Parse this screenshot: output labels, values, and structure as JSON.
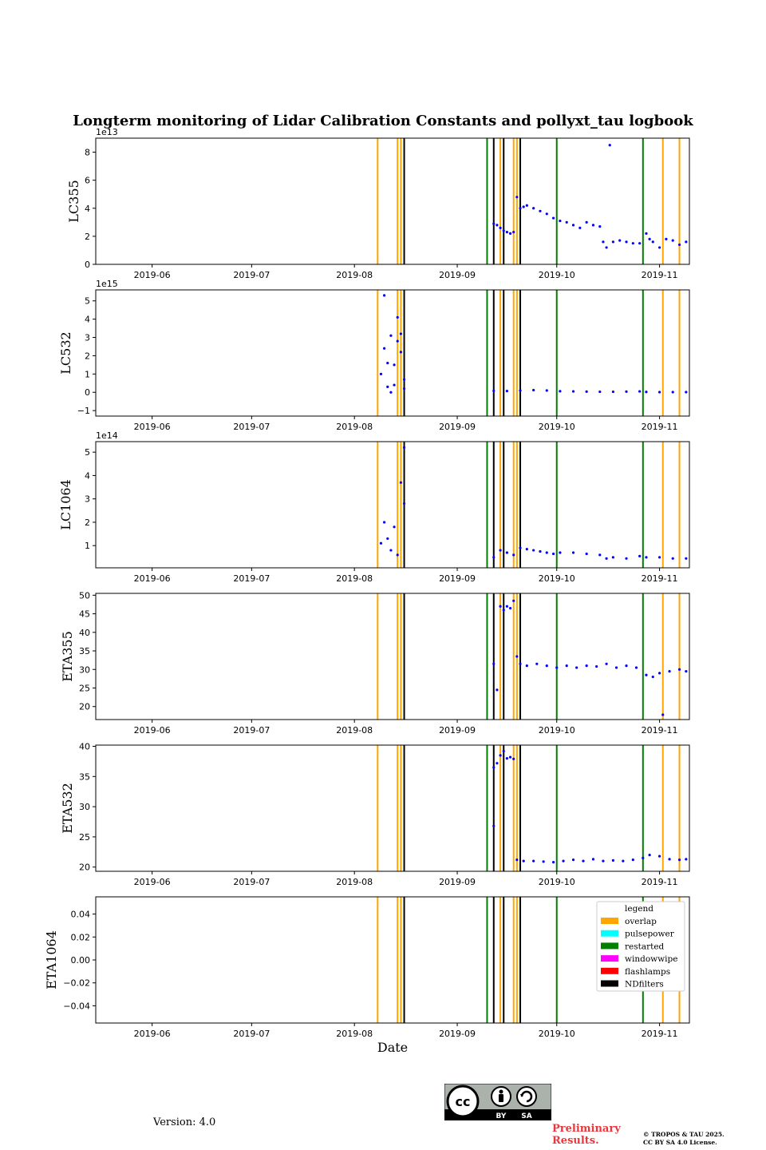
{
  "figure": {
    "title": "Longterm monitoring of Lidar Calibration Constants and pollyxt_tau logbook",
    "xlabel": "Date",
    "version": "Version: 4.0",
    "preliminary": "Preliminary Results.",
    "copyright_line1": "© TROPOS & TAU 2025.",
    "copyright_line2": "CC BY SA 4.0 License.",
    "license_badge": {
      "icon": "cc-by-sa-icon",
      "labels": [
        "BY",
        "SA"
      ]
    }
  },
  "chart_data": [
    {
      "type": "scatter",
      "ylabel": "LC355",
      "offset_text": "1e13",
      "xlim": [
        "2019-05-15",
        "2019-11-10"
      ],
      "ylim": [
        0,
        9
      ],
      "yticks": [
        0,
        2,
        4,
        6,
        8
      ],
      "ytick_labels": [
        "0",
        "2",
        "4",
        "6",
        "8"
      ],
      "series": [
        {
          "color": "#0000ff",
          "x": [
            "2019-09-12",
            "2019-09-13",
            "2019-09-14",
            "2019-09-15",
            "2019-09-16",
            "2019-09-17",
            "2019-09-18",
            "2019-09-19",
            "2019-09-20",
            "2019-09-21",
            "2019-09-22",
            "2019-09-24",
            "2019-09-26",
            "2019-09-28",
            "2019-09-30",
            "2019-10-02",
            "2019-10-04",
            "2019-10-06",
            "2019-10-08",
            "2019-10-10",
            "2019-10-12",
            "2019-10-14",
            "2019-10-15",
            "2019-10-16",
            "2019-10-17",
            "2019-10-18",
            "2019-10-20",
            "2019-10-22",
            "2019-10-24",
            "2019-10-26",
            "2019-10-28",
            "2019-10-29",
            "2019-10-30",
            "2019-11-01",
            "2019-11-03",
            "2019-11-05",
            "2019-11-07",
            "2019-11-09"
          ],
          "y": [
            2.9,
            2.8,
            2.6,
            2.4,
            2.3,
            2.2,
            2.3,
            4.8,
            4.0,
            4.1,
            4.2,
            4.0,
            3.8,
            3.6,
            3.3,
            3.1,
            3.0,
            2.8,
            2.6,
            3.0,
            2.8,
            2.7,
            1.6,
            1.2,
            8.5,
            1.6,
            1.7,
            1.6,
            1.5,
            1.5,
            2.2,
            1.8,
            1.6,
            1.2,
            1.8,
            1.7,
            1.4,
            1.6
          ]
        }
      ]
    },
    {
      "type": "scatter",
      "ylabel": "LC532",
      "offset_text": "1e15",
      "xlim": [
        "2019-05-15",
        "2019-11-10"
      ],
      "ylim": [
        -1.3,
        5.6
      ],
      "yticks": [
        -1,
        0,
        1,
        2,
        3,
        4,
        5
      ],
      "ytick_labels": [
        "−1",
        "0",
        "1",
        "2",
        "3",
        "4",
        "5"
      ],
      "series": [
        {
          "color": "#0000ff",
          "x": [
            "2019-08-09",
            "2019-08-10",
            "2019-08-10",
            "2019-08-11",
            "2019-08-11",
            "2019-08-12",
            "2019-08-12",
            "2019-08-13",
            "2019-08-13",
            "2019-08-14",
            "2019-08-14",
            "2019-08-15",
            "2019-08-15",
            "2019-08-16",
            "2019-08-16",
            "2019-09-12",
            "2019-09-16",
            "2019-09-20",
            "2019-09-24",
            "2019-09-28",
            "2019-10-02",
            "2019-10-06",
            "2019-10-10",
            "2019-10-14",
            "2019-10-18",
            "2019-10-22",
            "2019-10-26",
            "2019-10-28",
            "2019-11-01",
            "2019-11-05",
            "2019-11-09"
          ],
          "y": [
            1.0,
            5.3,
            2.4,
            1.6,
            0.3,
            3.1,
            0.0,
            1.5,
            0.4,
            2.8,
            4.1,
            3.2,
            2.2,
            0.7,
            0.2,
            0.08,
            0.07,
            0.1,
            0.12,
            0.1,
            0.06,
            0.05,
            0.04,
            0.03,
            0.03,
            0.04,
            0.05,
            0.02,
            0.01,
            0.01,
            0.01
          ]
        }
      ]
    },
    {
      "type": "scatter",
      "ylabel": "LC1064",
      "offset_text": "1e14",
      "xlim": [
        "2019-05-15",
        "2019-11-10"
      ],
      "ylim": [
        0.05,
        5.45
      ],
      "yticks": [
        1,
        2,
        3,
        4,
        5
      ],
      "ytick_labels": [
        "1",
        "2",
        "3",
        "4",
        "5"
      ],
      "series": [
        {
          "color": "#0000ff",
          "x": [
            "2019-08-09",
            "2019-08-10",
            "2019-08-11",
            "2019-08-12",
            "2019-08-13",
            "2019-08-14",
            "2019-08-15",
            "2019-08-16",
            "2019-08-16",
            "2019-09-12",
            "2019-09-14",
            "2019-09-16",
            "2019-09-18",
            "2019-09-20",
            "2019-09-22",
            "2019-09-24",
            "2019-09-26",
            "2019-09-28",
            "2019-09-30",
            "2019-10-02",
            "2019-10-06",
            "2019-10-10",
            "2019-10-14",
            "2019-10-16",
            "2019-10-18",
            "2019-10-22",
            "2019-10-26",
            "2019-10-28",
            "2019-11-01",
            "2019-11-05",
            "2019-11-09"
          ],
          "y": [
            1.1,
            2.0,
            1.3,
            0.8,
            1.8,
            0.6,
            3.7,
            2.8,
            5.2,
            0.5,
            0.8,
            0.7,
            0.6,
            0.9,
            0.85,
            0.8,
            0.75,
            0.7,
            0.65,
            0.7,
            0.7,
            0.65,
            0.6,
            0.45,
            0.5,
            0.45,
            0.55,
            0.5,
            0.5,
            0.45,
            0.45
          ]
        }
      ]
    },
    {
      "type": "scatter",
      "ylabel": "ETA355",
      "offset_text": "",
      "xlim": [
        "2019-05-15",
        "2019-11-10"
      ],
      "ylim": [
        16.5,
        50.5
      ],
      "yticks": [
        20,
        25,
        30,
        35,
        40,
        45,
        50
      ],
      "ytick_labels": [
        "20",
        "25",
        "30",
        "35",
        "40",
        "45",
        "50"
      ],
      "series": [
        {
          "color": "#0000ff",
          "x": [
            "2019-09-12",
            "2019-09-13",
            "2019-09-14",
            "2019-09-15",
            "2019-09-16",
            "2019-09-17",
            "2019-09-18",
            "2019-09-19",
            "2019-09-20",
            "2019-09-22",
            "2019-09-25",
            "2019-09-28",
            "2019-10-01",
            "2019-10-04",
            "2019-10-07",
            "2019-10-10",
            "2019-10-13",
            "2019-10-16",
            "2019-10-19",
            "2019-10-22",
            "2019-10-25",
            "2019-10-28",
            "2019-10-30",
            "2019-11-01",
            "2019-11-02",
            "2019-11-04",
            "2019-11-07",
            "2019-11-09"
          ],
          "y": [
            31.5,
            24.5,
            47.0,
            46.0,
            47.0,
            46.5,
            48.5,
            33.5,
            31.5,
            31.0,
            31.5,
            31.0,
            30.5,
            31.0,
            30.5,
            31.0,
            30.8,
            31.5,
            30.5,
            31.0,
            30.5,
            28.5,
            28.0,
            29.0,
            17.8,
            29.5,
            30.0,
            29.5
          ]
        }
      ]
    },
    {
      "type": "scatter",
      "ylabel": "ETA532",
      "offset_text": "",
      "xlim": [
        "2019-05-15",
        "2019-11-10"
      ],
      "ylim": [
        19.3,
        40.2
      ],
      "yticks": [
        20,
        25,
        30,
        35,
        40
      ],
      "ytick_labels": [
        "20",
        "25",
        "30",
        "35",
        "40"
      ],
      "series": [
        {
          "color": "#0000ff",
          "x": [
            "2019-09-12",
            "2019-09-12",
            "2019-09-13",
            "2019-09-14",
            "2019-09-15",
            "2019-09-16",
            "2019-09-17",
            "2019-09-18",
            "2019-09-19",
            "2019-09-21",
            "2019-09-24",
            "2019-09-27",
            "2019-09-30",
            "2019-10-03",
            "2019-10-06",
            "2019-10-09",
            "2019-10-12",
            "2019-10-15",
            "2019-10-18",
            "2019-10-21",
            "2019-10-24",
            "2019-10-27",
            "2019-10-29",
            "2019-11-01",
            "2019-11-04",
            "2019-11-07",
            "2019-11-09"
          ],
          "y": [
            26.8,
            36.5,
            37.2,
            38.5,
            39.2,
            38.0,
            38.2,
            37.9,
            21.2,
            21.0,
            21.0,
            20.9,
            20.8,
            21.0,
            21.2,
            21.0,
            21.3,
            21.0,
            21.1,
            21.0,
            21.2,
            21.5,
            22.0,
            21.8,
            21.3,
            21.2,
            21.3
          ]
        }
      ]
    },
    {
      "type": "scatter",
      "ylabel": "ETA1064",
      "offset_text": "",
      "xlim": [
        "2019-05-15",
        "2019-11-10"
      ],
      "ylim": [
        -0.055,
        0.055
      ],
      "yticks": [
        -0.04,
        -0.02,
        0.0,
        0.02,
        0.04
      ],
      "ytick_labels": [
        "−0.04",
        "−0.02",
        "0.00",
        "0.02",
        "0.04"
      ],
      "series": []
    }
  ],
  "x_ticks": [
    {
      "date": "2019-06-01",
      "label": "2019-06"
    },
    {
      "date": "2019-07-01",
      "label": "2019-07"
    },
    {
      "date": "2019-08-01",
      "label": "2019-08"
    },
    {
      "date": "2019-09-01",
      "label": "2019-09"
    },
    {
      "date": "2019-10-01",
      "label": "2019-10"
    },
    {
      "date": "2019-11-01",
      "label": "2019-11"
    }
  ],
  "events": [
    {
      "date": "2019-08-08",
      "type": "overlap"
    },
    {
      "date": "2019-08-14",
      "type": "overlap"
    },
    {
      "date": "2019-08-15",
      "type": "overlap"
    },
    {
      "date": "2019-08-16",
      "type": "NDfilters"
    },
    {
      "date": "2019-09-10",
      "type": "restarted"
    },
    {
      "date": "2019-09-12",
      "type": "NDfilters"
    },
    {
      "date": "2019-09-14",
      "type": "overlap"
    },
    {
      "date": "2019-09-15",
      "type": "NDfilters"
    },
    {
      "date": "2019-09-18",
      "type": "overlap"
    },
    {
      "date": "2019-09-19",
      "type": "overlap"
    },
    {
      "date": "2019-09-20",
      "type": "NDfilters"
    },
    {
      "date": "2019-10-01",
      "type": "restarted"
    },
    {
      "date": "2019-10-27",
      "type": "restarted"
    },
    {
      "date": "2019-11-02",
      "type": "overlap"
    },
    {
      "date": "2019-11-07",
      "type": "overlap"
    }
  ],
  "legend": {
    "title": "legend",
    "placement": "upper-right of last panel",
    "entries": [
      {
        "label": "overlap",
        "color": "#ffa500"
      },
      {
        "label": "pulsepower",
        "color": "#00ffff"
      },
      {
        "label": "restarted",
        "color": "#008000"
      },
      {
        "label": "windowwipe",
        "color": "#ff00ff"
      },
      {
        "label": "flashlamps",
        "color": "#ff0000"
      },
      {
        "label": "NDfilters",
        "color": "#000000"
      }
    ]
  },
  "colors": {
    "overlap": "#ffa500",
    "pulsepower": "#00ffff",
    "restarted": "#008000",
    "windowwipe": "#ff00ff",
    "flashlamps": "#ff0000",
    "NDfilters": "#000000",
    "points": "#0000ff"
  }
}
